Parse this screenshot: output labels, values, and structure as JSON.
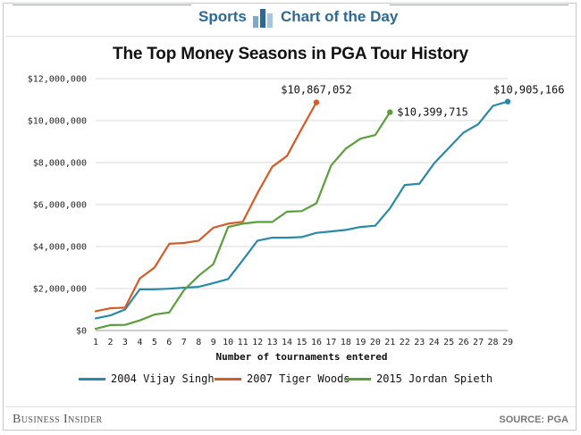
{
  "header": {
    "section_label": "Sports",
    "series_label": "Chart of the Day",
    "icon": "bar-chart-icon"
  },
  "colors": {
    "singh": "#2a89a8",
    "woods": "#d35d27",
    "spieth": "#5b9e3c",
    "accent": "#2b6a96"
  },
  "chart_data": {
    "type": "line",
    "title": "The Top Money Seasons in PGA Tour History",
    "xlabel": "Number of tournaments entered",
    "ylabel": "",
    "xlim": [
      1,
      29
    ],
    "ylim": [
      0,
      12000000
    ],
    "x_ticks": [
      1,
      2,
      3,
      4,
      5,
      6,
      7,
      8,
      9,
      10,
      11,
      12,
      13,
      14,
      15,
      16,
      17,
      18,
      19,
      20,
      21,
      22,
      23,
      24,
      25,
      26,
      27,
      28,
      29
    ],
    "y_ticks": [
      0,
      2000000,
      4000000,
      6000000,
      8000000,
      10000000,
      12000000
    ],
    "y_tick_labels": [
      "$0",
      "$2,000,000",
      "$4,000,000",
      "$6,000,000",
      "$8,000,000",
      "$10,000,000",
      "$12,000,000"
    ],
    "grid": true,
    "series": [
      {
        "name": "2004 Vijay Singh",
        "color_key": "singh",
        "x": [
          1,
          2,
          3,
          4,
          5,
          6,
          7,
          8,
          9,
          10,
          11,
          12,
          13,
          14,
          15,
          16,
          17,
          18,
          19,
          20,
          21,
          22,
          23,
          24,
          25,
          26,
          27,
          28,
          29
        ],
        "values": [
          580000,
          720000,
          1000000,
          1960000,
          1960000,
          1990000,
          2040000,
          2080000,
          2260000,
          2450000,
          3350000,
          4280000,
          4420000,
          4420000,
          4450000,
          4650000,
          4720000,
          4790000,
          4930000,
          4990000,
          5820000,
          6930000,
          6990000,
          7960000,
          8700000,
          9430000,
          9830000,
          10700000,
          10905166
        ],
        "end_label": "$10,905,166"
      },
      {
        "name": "2007 Tiger Woods",
        "color_key": "woods",
        "x": [
          1,
          2,
          3,
          4,
          5,
          6,
          7,
          8,
          9,
          10,
          11,
          12,
          13,
          14,
          15,
          16
        ],
        "values": [
          920000,
          1060000,
          1090000,
          2480000,
          3000000,
          4130000,
          4170000,
          4280000,
          4900000,
          5090000,
          5180000,
          6550000,
          7800000,
          8310000,
          9610000,
          10867052
        ],
        "end_label": "$10,867,052"
      },
      {
        "name": "2015 Jordan Spieth",
        "color_key": "spieth",
        "x": [
          1,
          2,
          3,
          4,
          5,
          6,
          7,
          8,
          9,
          10,
          11,
          12,
          13,
          14,
          15,
          16,
          17,
          18,
          19,
          20,
          21
        ],
        "values": [
          80000,
          260000,
          270000,
          480000,
          760000,
          860000,
          1920000,
          2610000,
          3160000,
          4930000,
          5090000,
          5170000,
          5170000,
          5660000,
          5690000,
          6060000,
          7860000,
          8670000,
          9140000,
          9310000,
          10399715
        ],
        "end_label": "$10,399,715"
      }
    ],
    "legend_position": "bottom"
  },
  "footer": {
    "brand": "Business Insider",
    "source": "SOURCE: PGA"
  }
}
